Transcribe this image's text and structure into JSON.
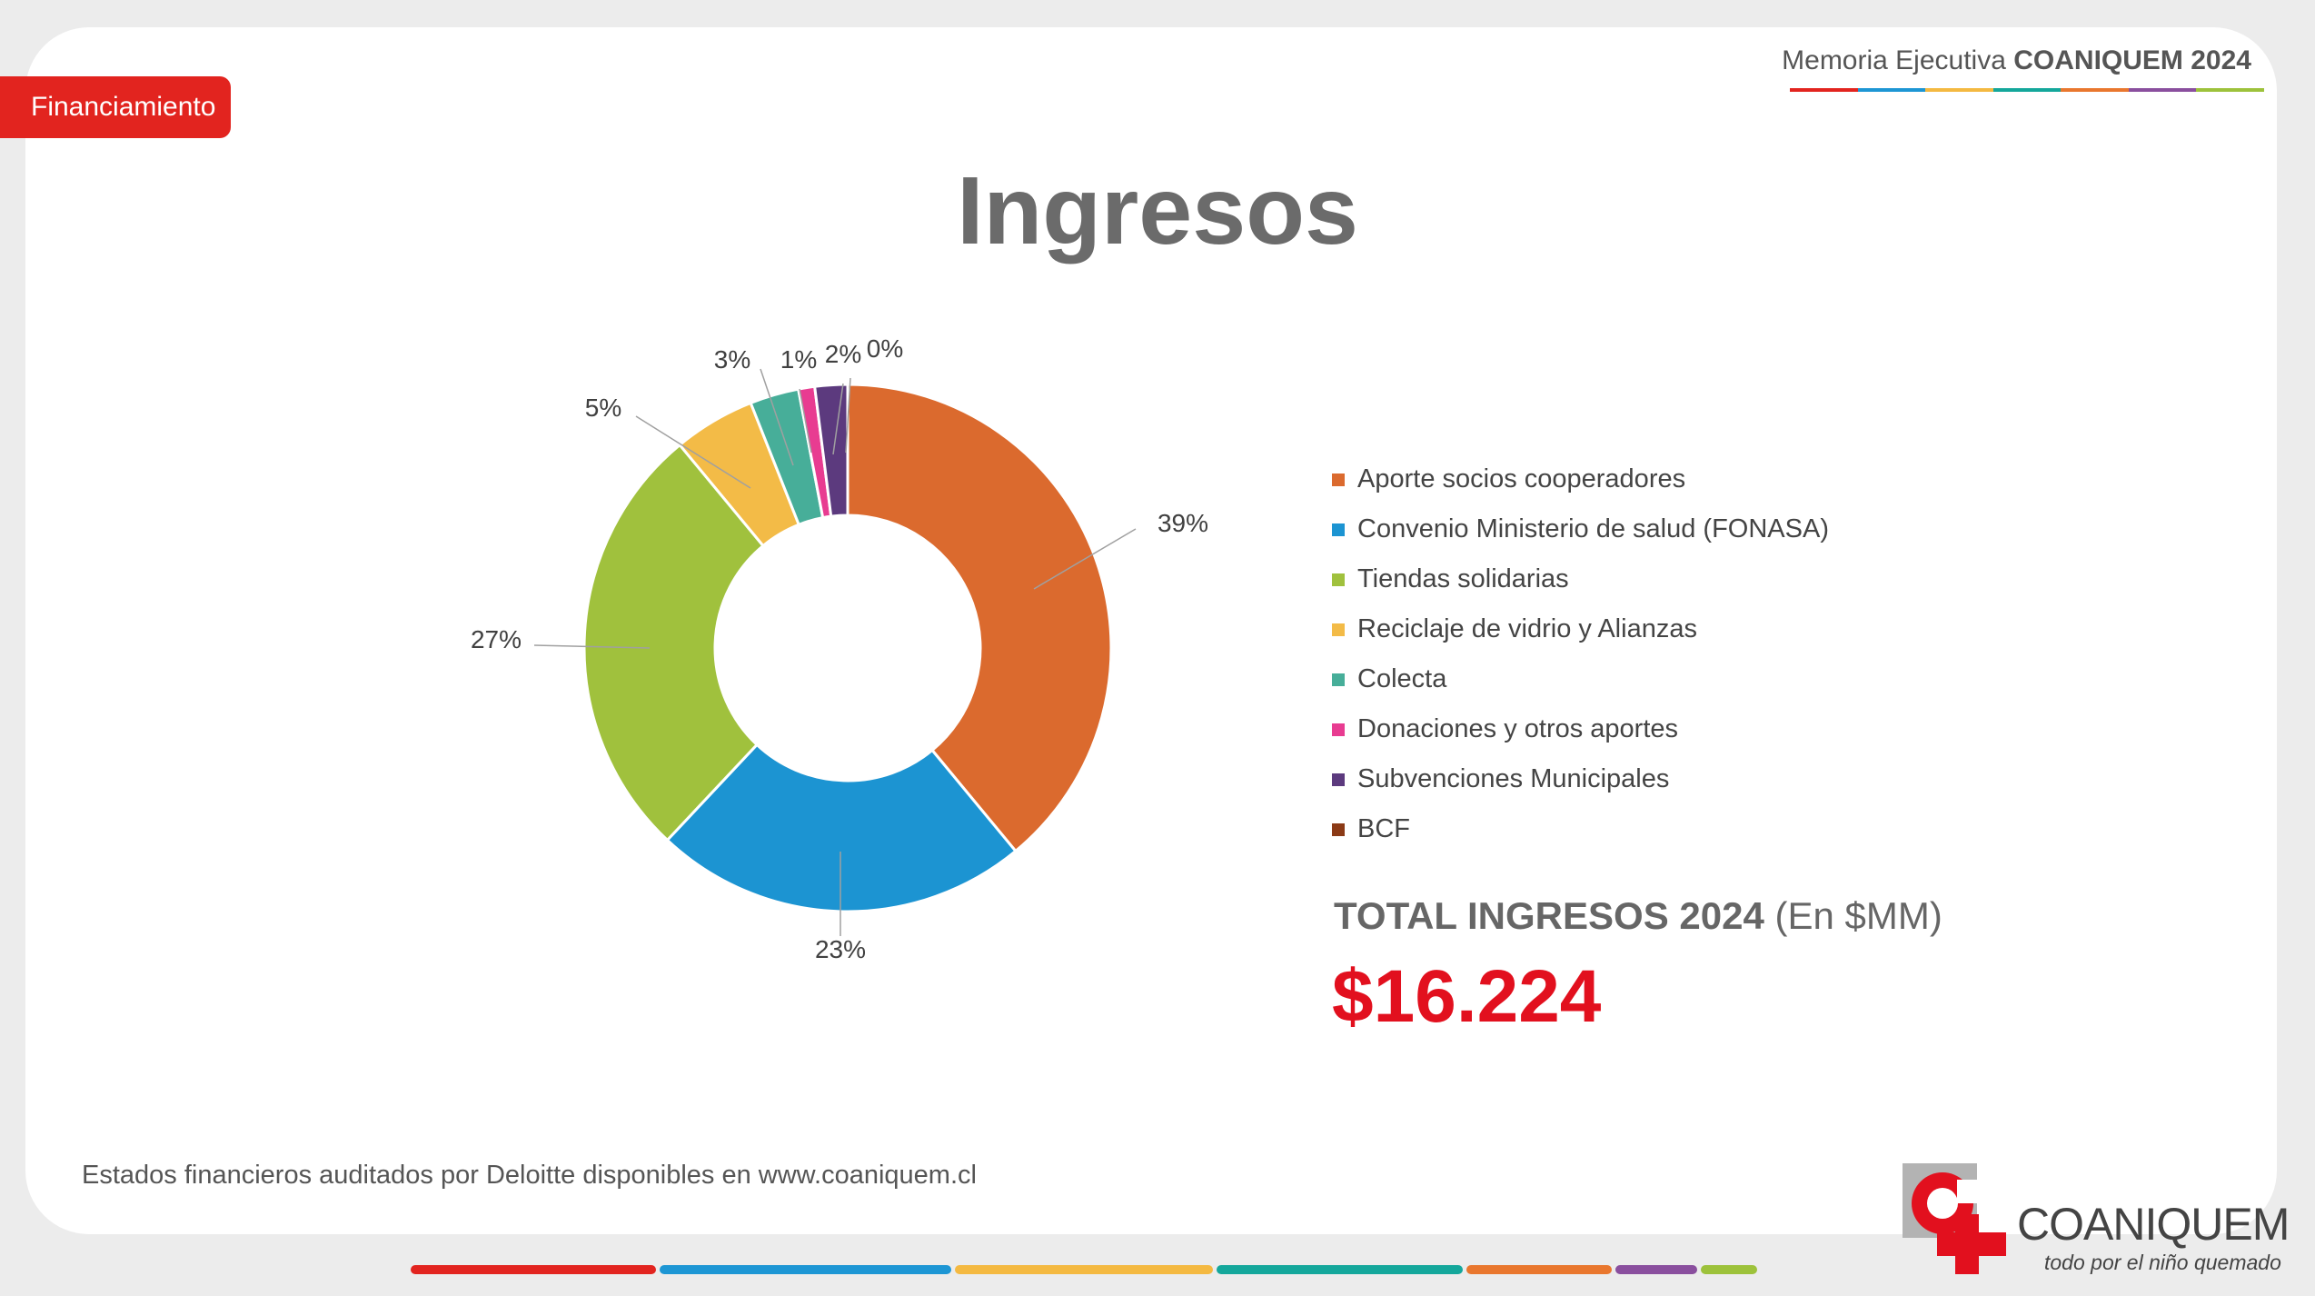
{
  "header": {
    "section_tag": "Financiamiento",
    "title_prefix": "Memoria Ejecutiva",
    "title_bold": "COANIQUEM 2024",
    "accent_colors": [
      "#e2241f",
      "#1d96d4",
      "#f4b941",
      "#14a79b",
      "#e9772e",
      "#8a4f9e",
      "#9dc23b"
    ]
  },
  "slide_title": "Ingresos",
  "chart_data": {
    "type": "pie",
    "donut": true,
    "categories": [
      "Aporte socios cooperadores",
      "Convenio Ministerio de salud (FONASA)",
      "Tiendas solidarias",
      "Reciclaje de vidrio y Alianzas",
      "Colecta",
      "Donaciones y otros aportes",
      "Subvenciones Municipales",
      "BCF"
    ],
    "values": [
      39,
      23,
      27,
      5,
      3,
      1,
      2,
      0
    ],
    "data_labels": [
      "39%",
      "23%",
      "27%",
      "5%",
      "3%",
      "1%",
      "2%",
      "0%"
    ],
    "colors": [
      "#db6a2e",
      "#1c94d2",
      "#a0c13d",
      "#f3bb47",
      "#47ae99",
      "#e83c91",
      "#5c3a7e",
      "#8b3a16"
    ],
    "legend_position": "right"
  },
  "total": {
    "label_bold": "TOTAL INGRESOS 2024",
    "label_unit": "(En $MM)",
    "value": "$16.224"
  },
  "footnote": "Estados financieros auditados por Deloitte disponibles en www.coaniquem.cl",
  "logo": {
    "name": "COANIQUEM",
    "tagline": "todo por el niño quemado"
  }
}
